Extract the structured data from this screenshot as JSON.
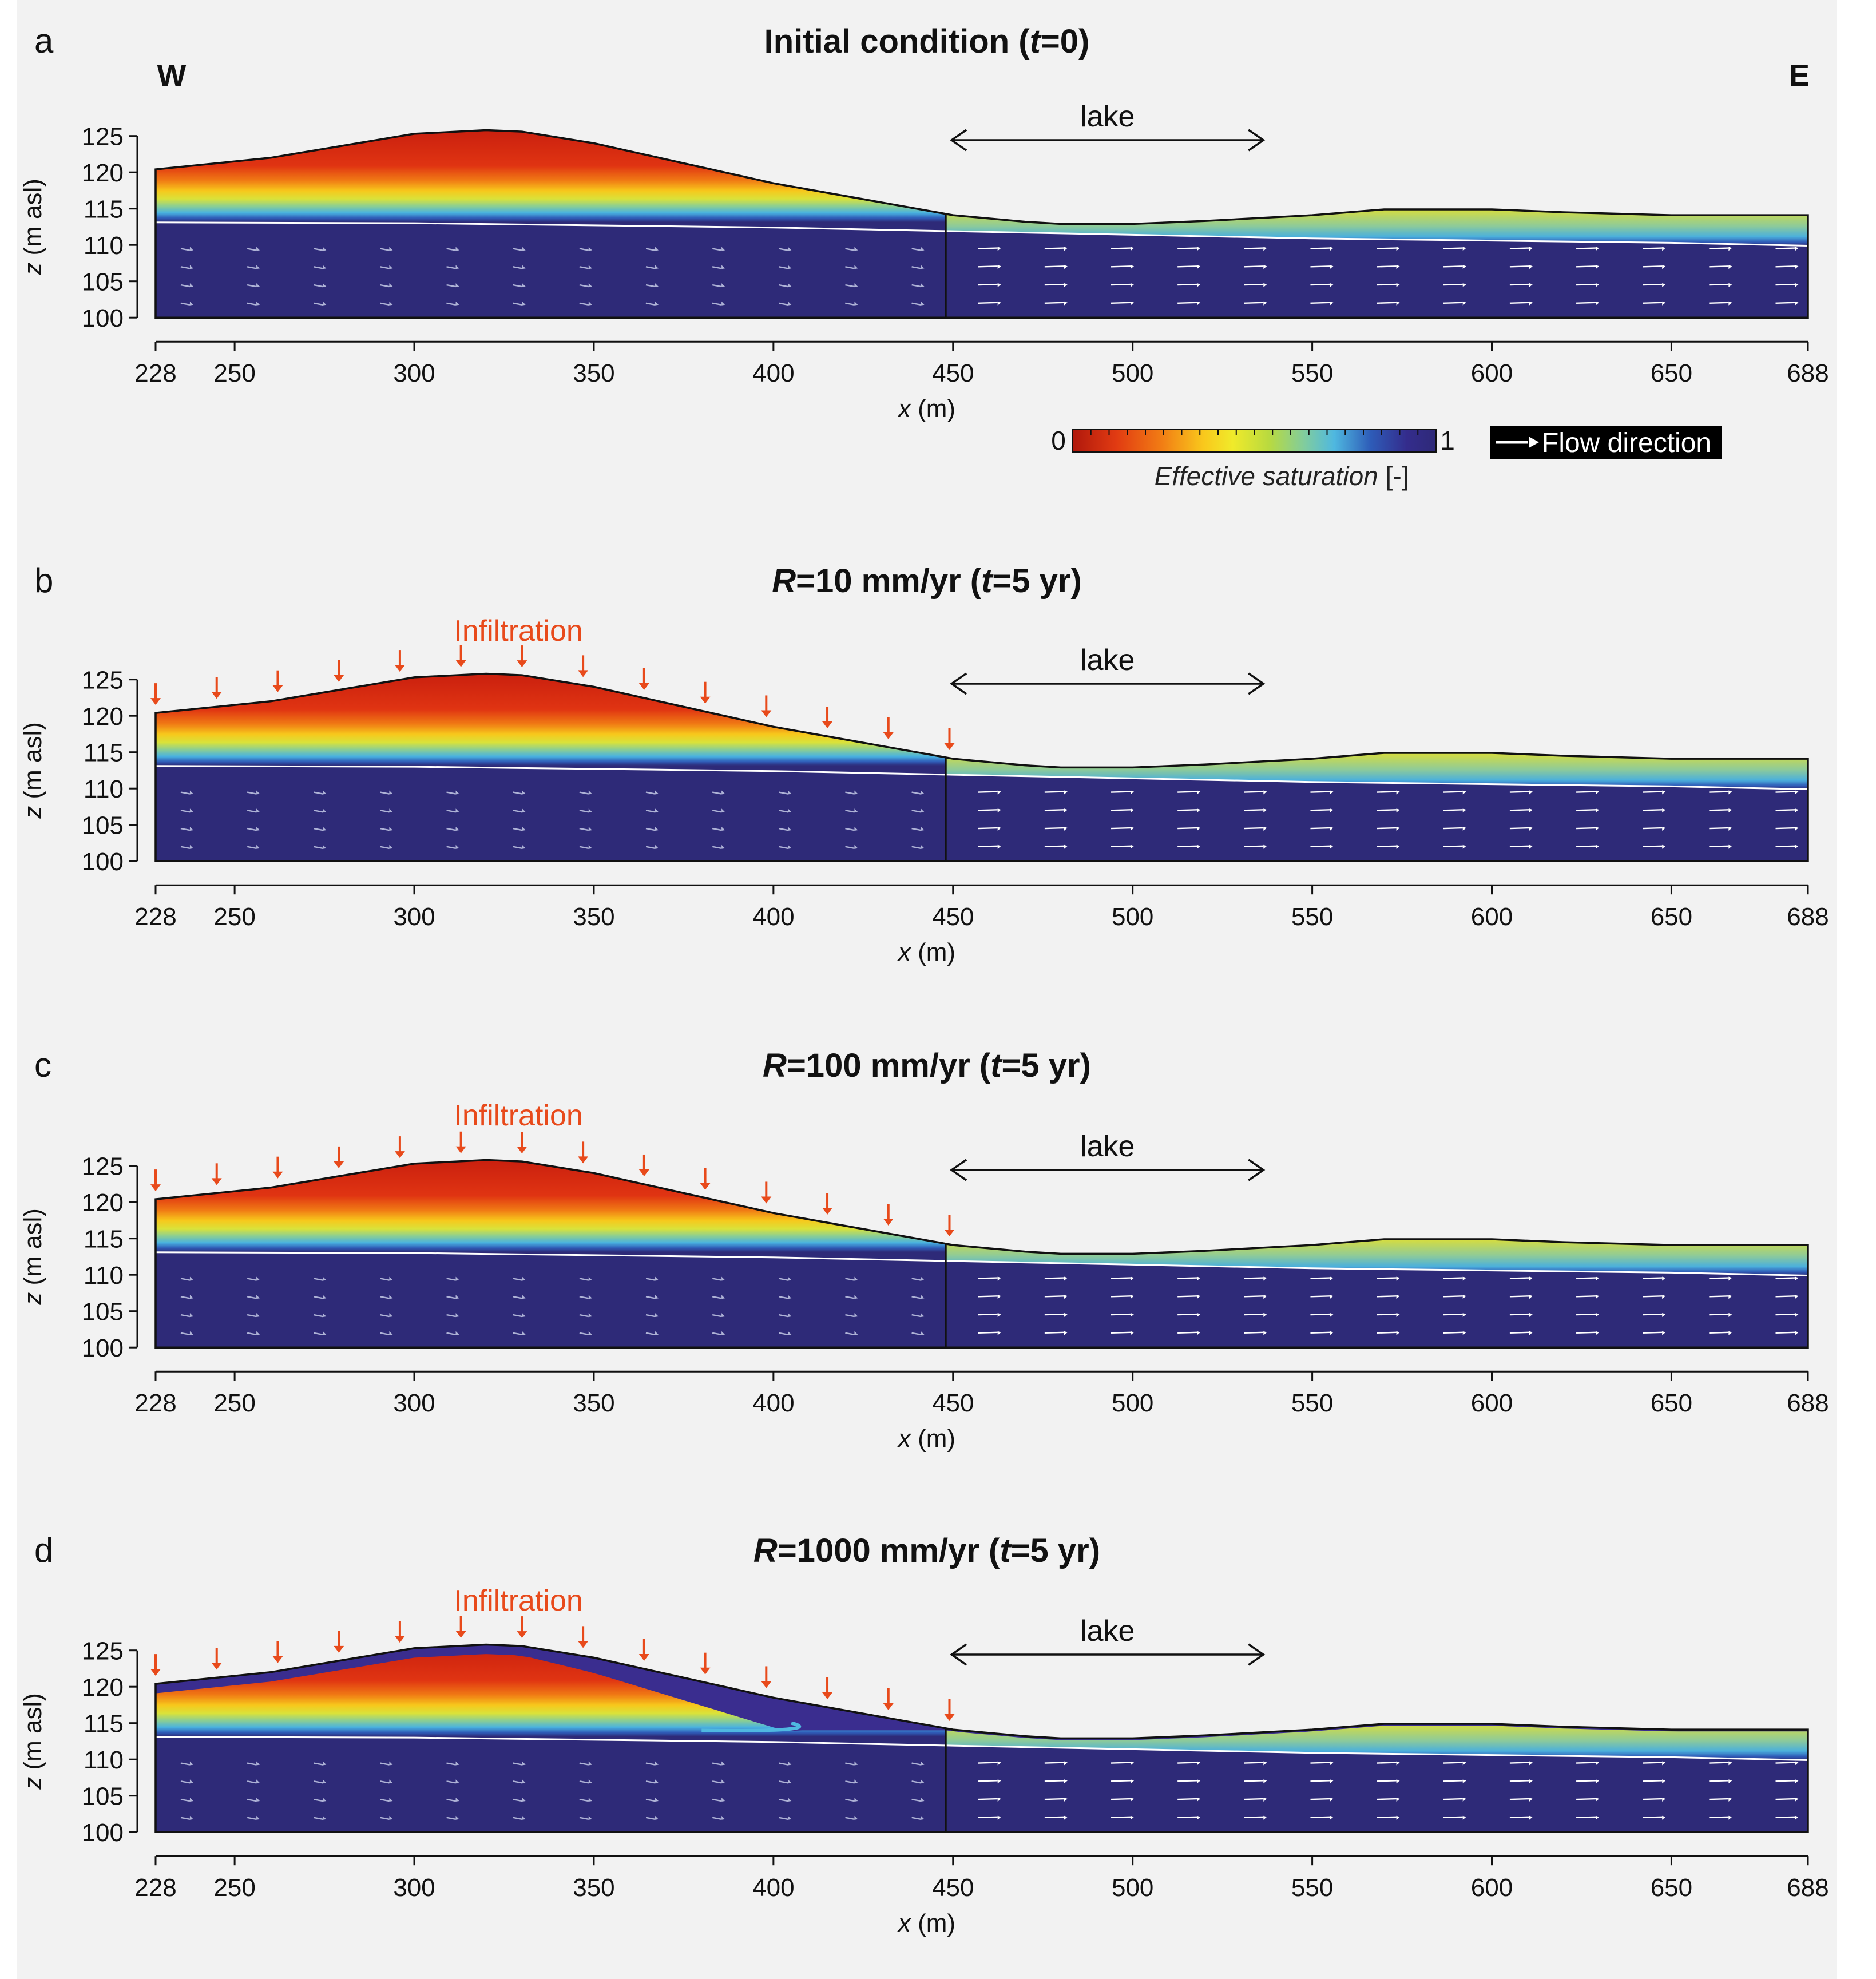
{
  "colors": {
    "background": "#f2f2f2",
    "frame": "#111111",
    "infiltration": "#e84a1b",
    "water_table": "#ffffff",
    "saturated": "#2e2a78"
  },
  "direction": {
    "west": "W",
    "east": "E"
  },
  "legend": {
    "colorbar_min": "0",
    "colorbar_max": "1",
    "colorbar_title_italic": "Effective saturation",
    "colorbar_title_unit": " [-]",
    "flow_label": "Flow direction",
    "colormap": [
      "#b0180c",
      "#e13b12",
      "#f17a14",
      "#f9c81c",
      "#f0ea2a",
      "#b9da3f",
      "#7fcca0",
      "#4fb8e0",
      "#2e5cb8",
      "#342c8c",
      "#2e2a78"
    ]
  },
  "chart_data": [
    {
      "panel": "a",
      "type": "heatmap",
      "title": {
        "var": "",
        "mid": "Initial condition (",
        "t": "t",
        "rest": "=0)"
      },
      "infiltration_label": "",
      "lake_label": "lake",
      "lake_range": [
        448,
        538
      ],
      "xlabel": "x",
      "xlabel_unit": " (m)",
      "ylabel": "z",
      "ylabel_unit": " (m asl)",
      "xlim": [
        228,
        688
      ],
      "ylim": [
        100,
        126
      ],
      "xticks": [
        228,
        250,
        300,
        350,
        400,
        450,
        500,
        550,
        600,
        650,
        688
      ],
      "yticks": [
        100,
        105,
        110,
        115,
        120,
        125
      ],
      "infiltration_x": [],
      "dry_surface": false
    },
    {
      "panel": "b",
      "type": "heatmap",
      "title": {
        "var": "R",
        "mid": "=10 mm/yr (",
        "t": "t",
        "rest": "=5 yr)"
      },
      "infiltration_label": "Infiltration",
      "lake_label": "lake",
      "lake_range": [
        448,
        538
      ],
      "xlabel": "x",
      "xlabel_unit": " (m)",
      "ylabel": "z",
      "ylabel_unit": " (m asl)",
      "xlim": [
        228,
        688
      ],
      "ylim": [
        100,
        126
      ],
      "xticks": [
        228,
        250,
        300,
        350,
        400,
        450,
        500,
        550,
        600,
        650,
        688
      ],
      "yticks": [
        100,
        105,
        110,
        115,
        120,
        125
      ],
      "infiltration_x": [
        228,
        245,
        262,
        279,
        296,
        313,
        330,
        347,
        364,
        381,
        398,
        415,
        432,
        449
      ],
      "dry_surface": false
    },
    {
      "panel": "c",
      "type": "heatmap",
      "title": {
        "var": "R",
        "mid": "=100 mm/yr (",
        "t": "t",
        "rest": "=5 yr)"
      },
      "infiltration_label": "Infiltration",
      "lake_label": "lake",
      "lake_range": [
        448,
        538
      ],
      "xlabel": "x",
      "xlabel_unit": " (m)",
      "ylabel": "z",
      "ylabel_unit": " (m asl)",
      "xlim": [
        228,
        688
      ],
      "ylim": [
        100,
        126
      ],
      "xticks": [
        228,
        250,
        300,
        350,
        400,
        450,
        500,
        550,
        600,
        650,
        688
      ],
      "yticks": [
        100,
        105,
        110,
        115,
        120,
        125
      ],
      "infiltration_x": [
        228,
        245,
        262,
        279,
        296,
        313,
        330,
        347,
        364,
        381,
        398,
        415,
        432,
        449
      ],
      "dry_surface": false
    },
    {
      "panel": "d",
      "type": "heatmap",
      "title": {
        "var": "R",
        "mid": "=1000 mm/yr (",
        "t": "t",
        "rest": "=5 yr)"
      },
      "infiltration_label": "Infiltration",
      "lake_label": "lake",
      "lake_range": [
        448,
        538
      ],
      "xlabel": "x",
      "xlabel_unit": " (m)",
      "ylabel": "z",
      "ylabel_unit": " (m asl)",
      "xlim": [
        228,
        688
      ],
      "ylim": [
        100,
        126
      ],
      "xticks": [
        228,
        250,
        300,
        350,
        400,
        450,
        500,
        550,
        600,
        650,
        688
      ],
      "yticks": [
        100,
        105,
        110,
        115,
        120,
        125
      ],
      "infiltration_x": [
        228,
        245,
        262,
        279,
        296,
        313,
        330,
        347,
        364,
        381,
        398,
        415,
        432,
        449
      ],
      "dry_surface": true
    }
  ],
  "surface_profile": {
    "x": [
      228,
      260,
      300,
      320,
      330,
      350,
      400,
      450,
      470,
      480,
      500,
      520,
      550,
      570,
      600,
      620,
      650,
      688
    ],
    "z": [
      120.4,
      122,
      125.3,
      125.8,
      125.6,
      124,
      118.5,
      114.1,
      113.2,
      112.9,
      112.9,
      113.3,
      114.1,
      114.9,
      114.9,
      114.5,
      114.1,
      114.1
    ]
  },
  "water_table": {
    "x": [
      228,
      300,
      400,
      450,
      500,
      550,
      600,
      650,
      688
    ],
    "z": [
      113.1,
      113.0,
      112.4,
      111.9,
      111.4,
      110.9,
      110.6,
      110.3,
      109.9
    ]
  }
}
